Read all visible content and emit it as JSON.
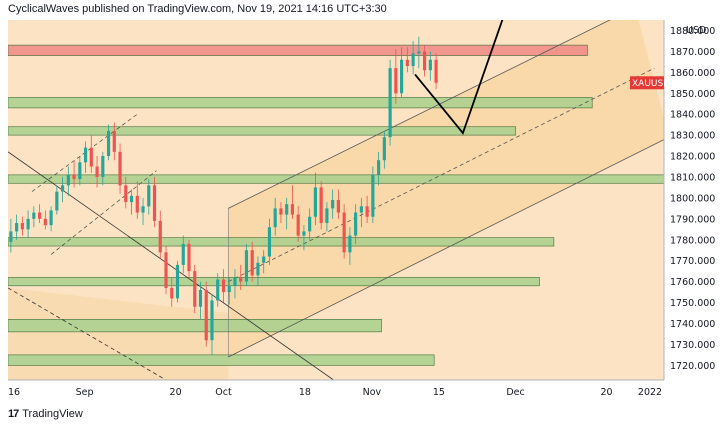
{
  "header": {
    "published": "CyclicalWaves published on TradingView.com, Nov 19, 2021 14:16 UTC+3:30"
  },
  "footer": {
    "logo": "17",
    "brand": "TradingView"
  },
  "colors": {
    "background": "#fbe3c4",
    "channel_fill": "#f8d6a6",
    "candle_up": "#26a69a",
    "candle_down": "#ef5350",
    "zone_green": "#a8d08d",
    "zone_red": "#f08a85",
    "symbol_badge": "#e53935"
  },
  "chart_data": {
    "type": "candlestick",
    "symbol": "XAUUSD",
    "current_price_label": "XAUUSD",
    "ylabel": "USD",
    "ylim": [
      1713,
      1885
    ],
    "y_ticks": [
      1720,
      1730,
      1740,
      1750,
      1760,
      1770,
      1780,
      1790,
      1800,
      1810,
      1820,
      1830,
      1840,
      1850,
      1860,
      1870,
      1880
    ],
    "y_tick_labels": [
      "1720.000",
      "1730.000",
      "1740.000",
      "1750.000",
      "1760.000",
      "1770.000",
      "1780.000",
      "1790.000",
      "1800.000",
      "1810.000",
      "1820.000",
      "1830.000",
      "1840.000",
      "1850.000",
      "1860.000",
      "1870.000",
      "1880.000"
    ],
    "x_range_days": [
      0,
      137
    ],
    "x_ticks": [
      {
        "label": "16",
        "day": 0
      },
      {
        "label": "Sep",
        "day": 16
      },
      {
        "label": "20",
        "day": 35
      },
      {
        "label": "Oct",
        "day": 45
      },
      {
        "label": "18",
        "day": 62
      },
      {
        "label": "Nov",
        "day": 76
      },
      {
        "label": "15",
        "day": 90
      },
      {
        "label": "Dec",
        "day": 106
      },
      {
        "label": "20",
        "day": 125
      },
      {
        "label": "2022",
        "day": 137
      }
    ],
    "support_resistance_zones": [
      {
        "color": "red",
        "y_top": 1873,
        "y_bottom": 1868,
        "day_end": 121
      },
      {
        "color": "green",
        "y_top": 1848,
        "y_bottom": 1843,
        "day_end": 122
      },
      {
        "color": "green",
        "y_top": 1834,
        "y_bottom": 1830,
        "day_end": 106
      },
      {
        "color": "green",
        "y_top": 1811,
        "y_bottom": 1807,
        "day_end": 138
      },
      {
        "color": "green",
        "y_top": 1781,
        "y_bottom": 1777,
        "day_end": 114
      },
      {
        "color": "green",
        "y_top": 1762,
        "y_bottom": 1758,
        "day_end": 111
      },
      {
        "color": "green",
        "y_top": 1742,
        "y_bottom": 1736,
        "day_end": 78
      },
      {
        "color": "green",
        "y_top": 1725,
        "y_bottom": 1720,
        "day_end": 89
      }
    ],
    "rising_channel": {
      "upper": [
        [
          46,
          1795
        ],
        [
          131,
          1891
        ]
      ],
      "lower": [
        [
          46,
          1724
        ],
        [
          138,
          1829
        ]
      ],
      "mid": [
        [
          46,
          1760
        ],
        [
          135,
          1862
        ]
      ]
    },
    "lower_wide_channel_top": [
      [
        0,
        1757
      ],
      [
        46,
        1745
      ]
    ],
    "downtrend_lines": {
      "solid": [
        [
          0,
          1822
        ],
        [
          68,
          1713
        ]
      ],
      "dashed": [
        [
          0,
          1757
        ],
        [
          33,
          1713
        ]
      ]
    },
    "early_channel": {
      "upper": [
        [
          5,
          1803
        ],
        [
          27,
          1840
        ]
      ],
      "lower": [
        [
          9,
          1773
        ],
        [
          31,
          1813
        ]
      ]
    },
    "projection_path": [
      [
        85,
        1859
      ],
      [
        95,
        1831
      ],
      [
        104,
        1890
      ]
    ],
    "candles": [
      [
        1779,
        1790,
        1774,
        1784
      ],
      [
        1784,
        1792,
        1780,
        1788
      ],
      [
        1788,
        1791,
        1782,
        1785
      ],
      [
        1785,
        1794,
        1781,
        1790
      ],
      [
        1790,
        1796,
        1786,
        1793
      ],
      [
        1793,
        1797,
        1788,
        1790
      ],
      [
        1790,
        1794,
        1785,
        1787
      ],
      [
        1787,
        1796,
        1784,
        1794
      ],
      [
        1794,
        1806,
        1792,
        1803
      ],
      [
        1803,
        1810,
        1798,
        1806
      ],
      [
        1806,
        1815,
        1801,
        1811
      ],
      [
        1811,
        1818,
        1805,
        1809
      ],
      [
        1809,
        1820,
        1806,
        1817
      ],
      [
        1817,
        1827,
        1812,
        1824
      ],
      [
        1824,
        1830,
        1812,
        1815
      ],
      [
        1815,
        1820,
        1805,
        1810
      ],
      [
        1810,
        1822,
        1806,
        1820
      ],
      [
        1820,
        1835,
        1818,
        1832
      ],
      [
        1832,
        1836,
        1818,
        1822
      ],
      [
        1822,
        1826,
        1802,
        1806
      ],
      [
        1806,
        1810,
        1795,
        1798
      ],
      [
        1798,
        1804,
        1792,
        1801
      ],
      [
        1801,
        1808,
        1790,
        1793
      ],
      [
        1793,
        1800,
        1787,
        1796
      ],
      [
        1796,
        1809,
        1792,
        1806
      ],
      [
        1806,
        1810,
        1786,
        1789
      ],
      [
        1789,
        1794,
        1771,
        1774
      ],
      [
        1774,
        1777,
        1754,
        1757
      ],
      [
        1757,
        1762,
        1748,
        1752
      ],
      [
        1752,
        1770,
        1750,
        1768
      ],
      [
        1768,
        1782,
        1764,
        1778
      ],
      [
        1778,
        1780,
        1762,
        1765
      ],
      [
        1765,
        1768,
        1745,
        1748
      ],
      [
        1748,
        1760,
        1742,
        1756
      ],
      [
        1756,
        1760,
        1729,
        1732
      ],
      [
        1732,
        1754,
        1725,
        1751
      ],
      [
        1751,
        1764,
        1748,
        1761
      ],
      [
        1761,
        1766,
        1750,
        1755
      ],
      [
        1755,
        1762,
        1749,
        1758
      ],
      [
        1758,
        1766,
        1752,
        1762
      ],
      [
        1762,
        1768,
        1756,
        1760
      ],
      [
        1760,
        1778,
        1758,
        1775
      ],
      [
        1775,
        1779,
        1760,
        1763
      ],
      [
        1763,
        1772,
        1758,
        1769
      ],
      [
        1769,
        1775,
        1764,
        1772
      ],
      [
        1772,
        1790,
        1768,
        1786
      ],
      [
        1786,
        1800,
        1782,
        1795
      ],
      [
        1795,
        1798,
        1788,
        1792
      ],
      [
        1792,
        1800,
        1785,
        1797
      ],
      [
        1797,
        1806,
        1790,
        1792
      ],
      [
        1792,
        1796,
        1779,
        1782
      ],
      [
        1782,
        1787,
        1775,
        1784
      ],
      [
        1784,
        1795,
        1780,
        1791
      ],
      [
        1791,
        1812,
        1787,
        1805
      ],
      [
        1805,
        1808,
        1785,
        1788
      ],
      [
        1788,
        1798,
        1784,
        1795
      ],
      [
        1795,
        1804,
        1790,
        1799
      ],
      [
        1799,
        1804,
        1790,
        1793
      ],
      [
        1793,
        1797,
        1771,
        1774
      ],
      [
        1774,
        1786,
        1768,
        1782
      ],
      [
        1782,
        1797,
        1778,
        1793
      ],
      [
        1793,
        1800,
        1786,
        1796
      ],
      [
        1796,
        1801,
        1788,
        1791
      ],
      [
        1791,
        1815,
        1788,
        1811
      ],
      [
        1811,
        1822,
        1806,
        1818
      ],
      [
        1818,
        1832,
        1814,
        1829
      ],
      [
        1829,
        1866,
        1825,
        1862
      ],
      [
        1862,
        1871,
        1845,
        1850
      ],
      [
        1850,
        1872,
        1848,
        1866
      ],
      [
        1866,
        1872,
        1860,
        1863
      ],
      [
        1863,
        1875,
        1859,
        1869
      ],
      [
        1869,
        1877,
        1862,
        1870
      ],
      [
        1870,
        1873,
        1858,
        1861
      ],
      [
        1861,
        1870,
        1856,
        1866
      ],
      [
        1866,
        1869,
        1852,
        1855
      ]
    ],
    "candle_start_day": 0,
    "candle_step_days": 1.2
  }
}
